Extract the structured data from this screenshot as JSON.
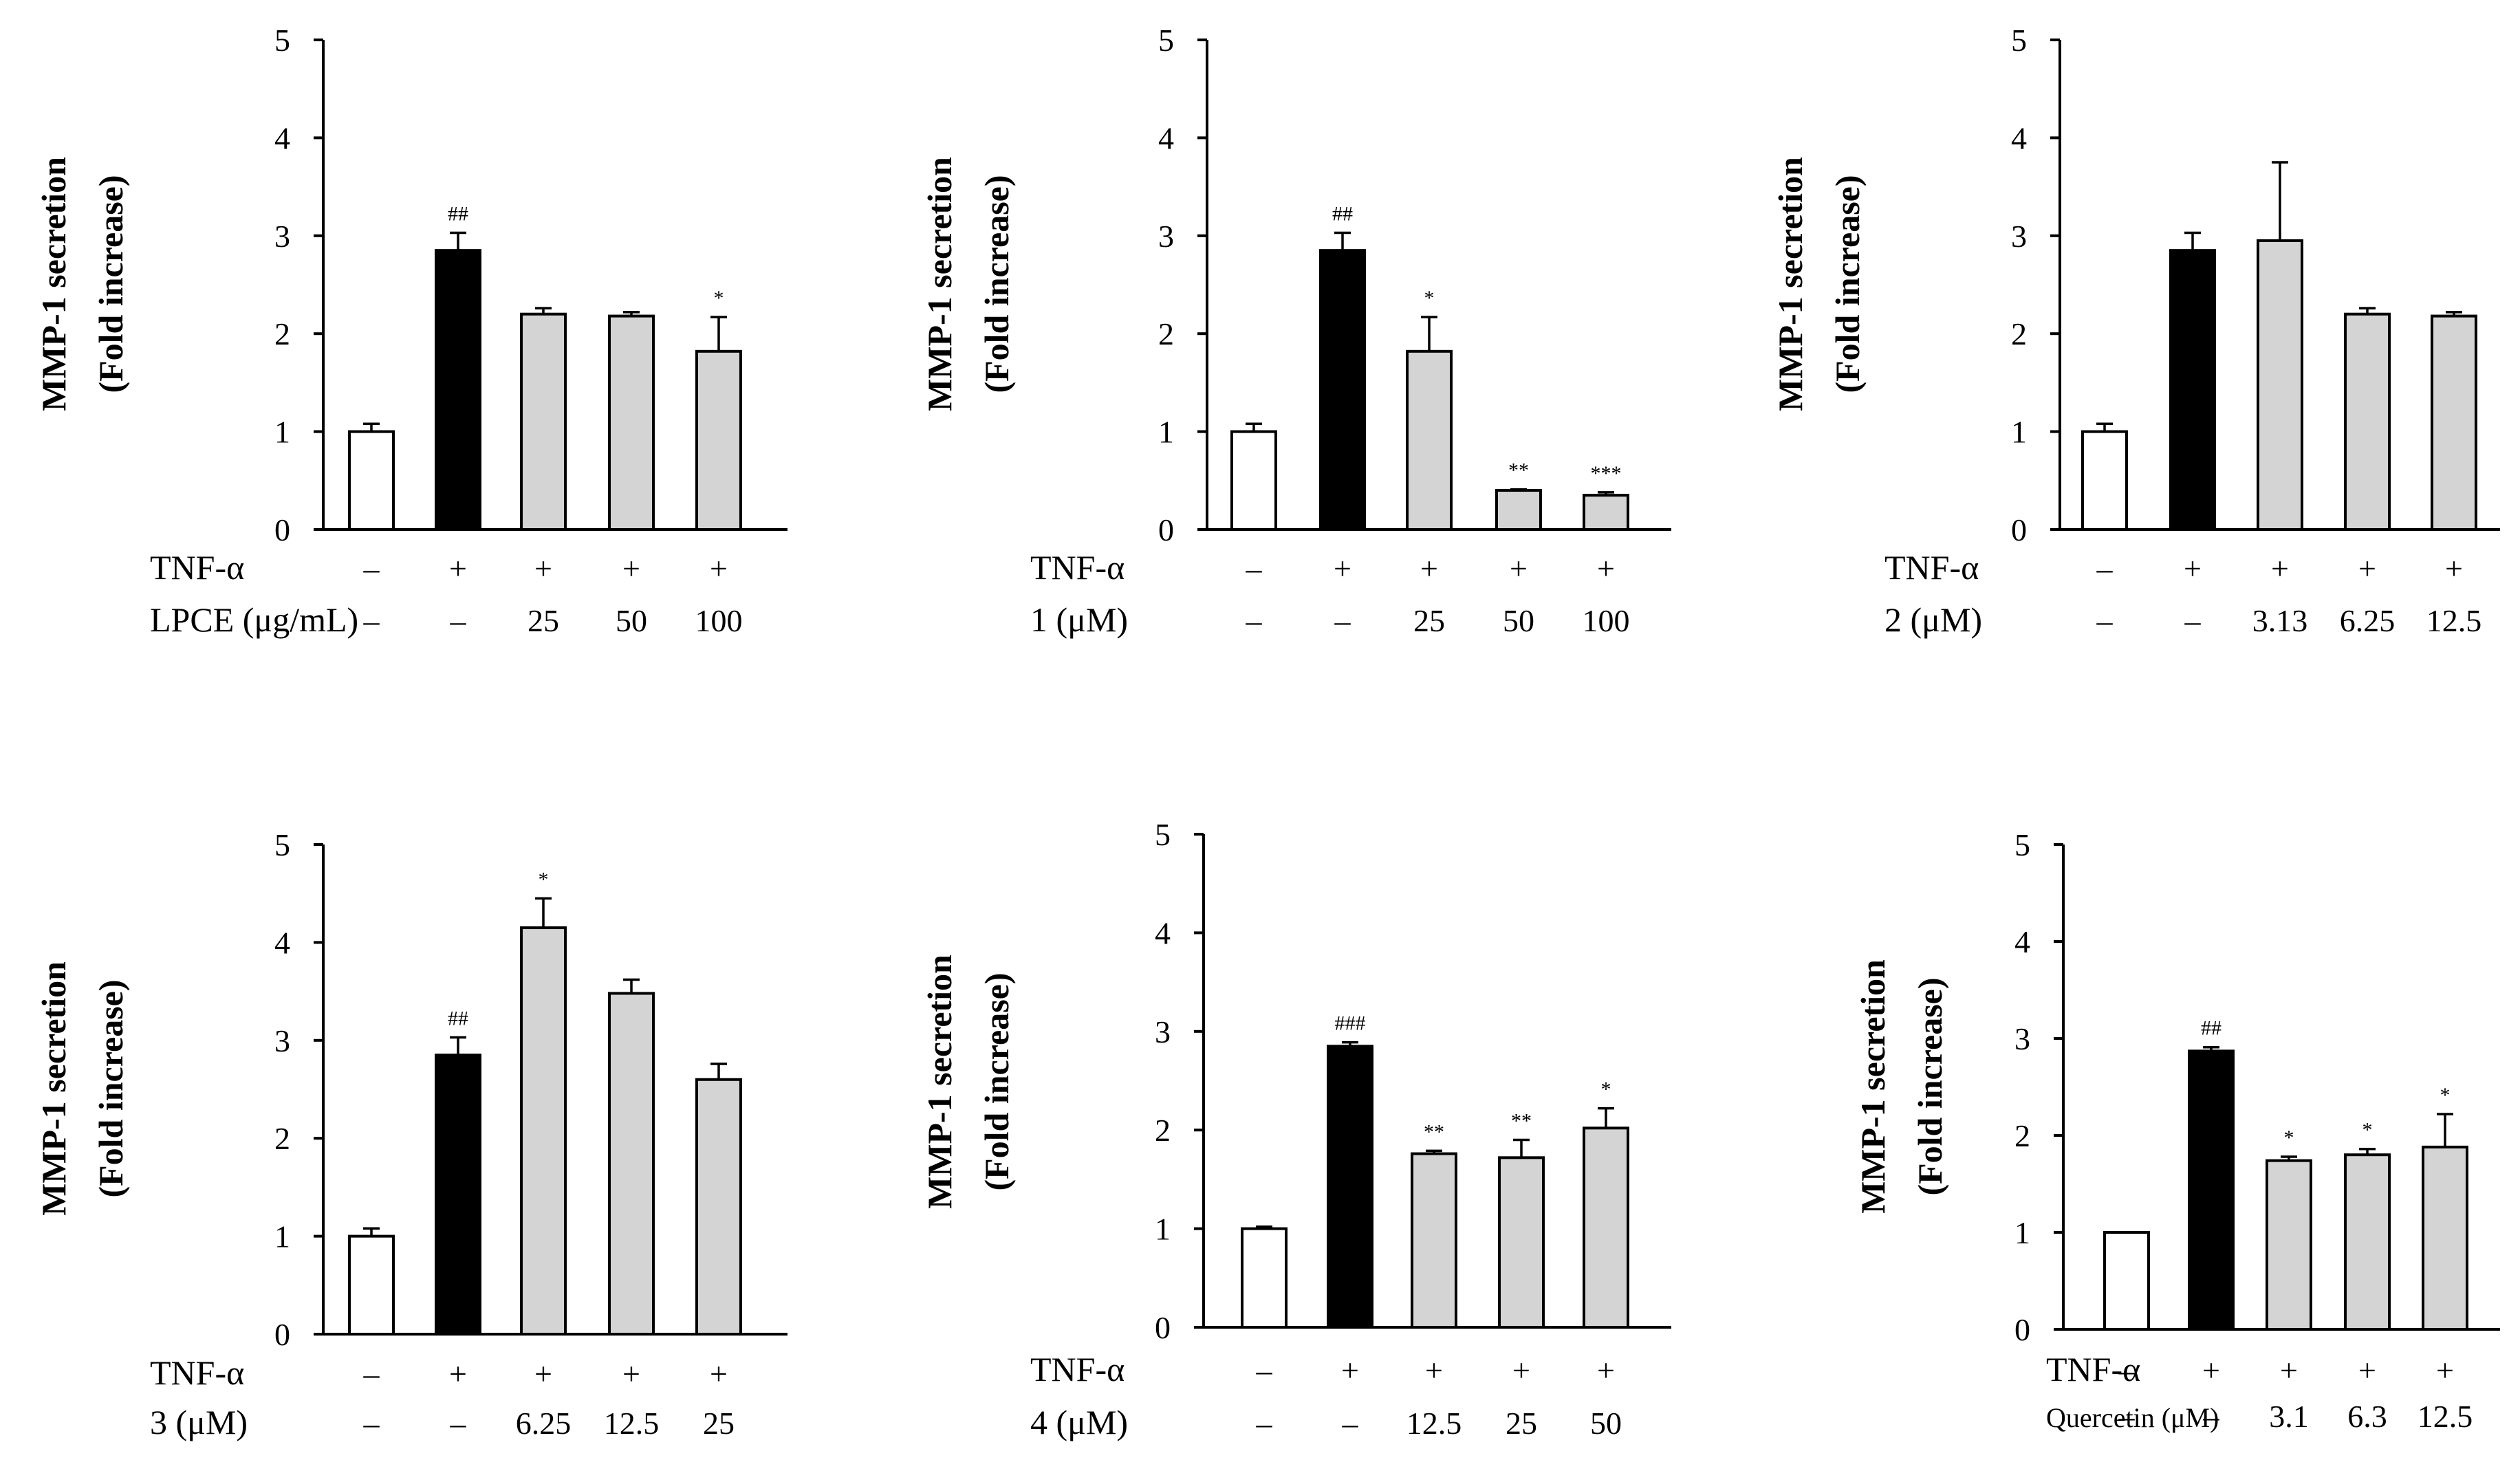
{
  "colors": {
    "white": "#ffffff",
    "black": "#000000",
    "gray": "#d4d4d4"
  },
  "chart_data": [
    {
      "type": "bar",
      "ylabel_line1": "MMP-1 secretion",
      "ylabel_line2": "(Fold increase)",
      "ylim": [
        0,
        5
      ],
      "yticks": [
        "0",
        "1",
        "2",
        "3",
        "4",
        "5"
      ],
      "values": [
        1.0,
        2.85,
        2.2,
        2.18,
        1.82
      ],
      "errors": [
        0.08,
        0.18,
        0.06,
        0.04,
        0.35
      ],
      "fills": [
        "white",
        "black",
        "gray",
        "gray",
        "gray"
      ],
      "annotations": [
        "",
        "##",
        "",
        "",
        "*"
      ],
      "row1": {
        "label": "TNF-α",
        "values": [
          "–",
          "+",
          "+",
          "+",
          "+"
        ]
      },
      "row2": {
        "label": "LPCE (μg/mL)",
        "small": false,
        "values": [
          "–",
          "–",
          "25",
          "50",
          "100"
        ]
      }
    },
    {
      "type": "bar",
      "ylabel_line1": "MMP-1 secretion",
      "ylabel_line2": "(Fold increase)",
      "ylim": [
        0,
        5
      ],
      "yticks": [
        "0",
        "1",
        "2",
        "3",
        "4",
        "5"
      ],
      "values": [
        1.0,
        2.85,
        1.82,
        0.4,
        0.35
      ],
      "errors": [
        0.08,
        0.18,
        0.35,
        0.01,
        0.03
      ],
      "fills": [
        "white",
        "black",
        "gray",
        "gray",
        "gray"
      ],
      "annotations": [
        "",
        "##",
        "*",
        "**",
        "***"
      ],
      "row1": {
        "label": "TNF-α",
        "values": [
          "–",
          "+",
          "+",
          "+",
          "+"
        ]
      },
      "row2": {
        "label": "1 (μM)",
        "small": false,
        "values": [
          "–",
          "–",
          "25",
          "50",
          "100"
        ]
      }
    },
    {
      "type": "bar",
      "ylabel_line1": "MMP-1 secretion",
      "ylabel_line2": "(Fold increase)",
      "ylim": [
        0,
        5
      ],
      "yticks": [
        "0",
        "1",
        "2",
        "3",
        "4",
        "5"
      ],
      "values": [
        1.0,
        2.85,
        2.95,
        2.2,
        2.18
      ],
      "errors": [
        0.08,
        0.18,
        0.8,
        0.06,
        0.04
      ],
      "fills": [
        "white",
        "black",
        "gray",
        "gray",
        "gray"
      ],
      "annotations": [
        "",
        "",
        "",
        "",
        ""
      ],
      "row1": {
        "label": "TNF-α",
        "values": [
          "–",
          "+",
          "+",
          "+",
          "+"
        ]
      },
      "row2": {
        "label": "2 (μM)",
        "small": false,
        "values": [
          "–",
          "–",
          "3.13",
          "6.25",
          "12.5"
        ]
      }
    },
    {
      "type": "bar",
      "ylabel_line1": "MMP-1 secretion",
      "ylabel_line2": "(Fold increase)",
      "ylim": [
        0,
        5
      ],
      "yticks": [
        "0",
        "1",
        "2",
        "3",
        "4",
        "5"
      ],
      "values": [
        1.0,
        2.85,
        4.15,
        3.48,
        2.6
      ],
      "errors": [
        0.08,
        0.18,
        0.3,
        0.14,
        0.16
      ],
      "fills": [
        "white",
        "black",
        "gray",
        "gray",
        "gray"
      ],
      "annotations": [
        "",
        "##",
        "*",
        "",
        ""
      ],
      "row1": {
        "label": "TNF-α",
        "values": [
          "–",
          "+",
          "+",
          "+",
          "+"
        ]
      },
      "row2": {
        "label": "3 (μM)",
        "small": false,
        "values": [
          "–",
          "–",
          "6.25",
          "12.5",
          "25"
        ]
      }
    },
    {
      "type": "bar",
      "ylabel_line1": "MMP-1 secretion",
      "ylabel_line2": "(Fold increase)",
      "ylim": [
        0,
        5
      ],
      "yticks": [
        "0",
        "1",
        "2",
        "3",
        "4",
        "5"
      ],
      "values": [
        1.0,
        2.85,
        1.76,
        1.72,
        2.02
      ],
      "errors": [
        0.02,
        0.04,
        0.03,
        0.18,
        0.2
      ],
      "fills": [
        "white",
        "black",
        "gray",
        "gray",
        "gray"
      ],
      "annotations": [
        "",
        "###",
        "**",
        "**",
        "*"
      ],
      "row1": {
        "label": "TNF-α",
        "values": [
          "–",
          "+",
          "+",
          "+",
          "+"
        ]
      },
      "row2": {
        "label": "4 (μM)",
        "small": false,
        "values": [
          "–",
          "–",
          "12.5",
          "25",
          "50"
        ]
      }
    },
    {
      "type": "bar",
      "ylabel_line1": "MMP-1 secretion",
      "ylabel_line2": "(Fold increase)",
      "ylim": [
        0,
        5
      ],
      "yticks": [
        "0",
        "1",
        "2",
        "3",
        "4",
        "5"
      ],
      "values": [
        1.0,
        2.87,
        1.74,
        1.8,
        1.88
      ],
      "errors": [
        0.0,
        0.04,
        0.04,
        0.06,
        0.34
      ],
      "fills": [
        "white",
        "black",
        "gray",
        "gray",
        "gray"
      ],
      "annotations": [
        "",
        "##",
        "*",
        "*",
        "*"
      ],
      "row1": {
        "label": "TNF-α",
        "values": [
          "–",
          "+",
          "+",
          "+",
          "+"
        ]
      },
      "row2": {
        "label": "Quercetin  (μM)",
        "small": true,
        "values": [
          "–",
          "–",
          "3.1",
          "6.3",
          "12.5"
        ]
      }
    }
  ]
}
